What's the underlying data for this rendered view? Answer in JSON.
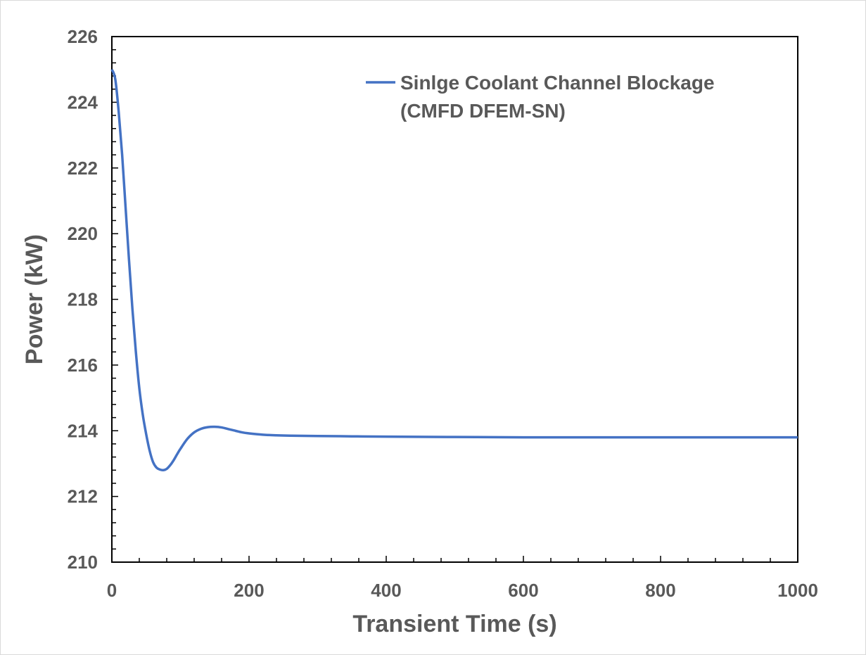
{
  "chart_data": {
    "type": "line",
    "title": "",
    "xlabel": "Transient Time (s)",
    "ylabel": "Power (kW)",
    "xlim": [
      0,
      1000
    ],
    "ylim": [
      210,
      226
    ],
    "x_ticks": [
      "0",
      "200",
      "400",
      "600",
      "800",
      "1000"
    ],
    "y_ticks": [
      "210",
      "212",
      "214",
      "216",
      "218",
      "220",
      "222",
      "224",
      "226"
    ],
    "grid": false,
    "legend_position": "top-right",
    "series": [
      {
        "name": "Sinlge Coolant Channel Blockage (CMFD DFEM-SN)",
        "legend_lines": [
          "Sinlge Coolant Channel Blockage",
          "(CMFD DFEM-SN)"
        ],
        "color": "#4472c4",
        "x": [
          0,
          5,
          10,
          15,
          20,
          25,
          30,
          35,
          40,
          45,
          50,
          55,
          60,
          65,
          70,
          75,
          80,
          85,
          90,
          95,
          100,
          110,
          120,
          130,
          140,
          150,
          160,
          170,
          180,
          190,
          200,
          220,
          240,
          260,
          300,
          350,
          400,
          500,
          600,
          700,
          800,
          900,
          1000
        ],
        "y": [
          225.0,
          224.7,
          223.7,
          222.4,
          220.8,
          219.2,
          217.7,
          216.4,
          215.3,
          214.5,
          213.9,
          213.4,
          213.05,
          212.88,
          212.82,
          212.8,
          212.84,
          212.95,
          213.1,
          213.28,
          213.45,
          213.75,
          213.95,
          214.06,
          214.11,
          214.12,
          214.1,
          214.05,
          214.0,
          213.95,
          213.92,
          213.88,
          213.86,
          213.85,
          213.84,
          213.83,
          213.82,
          213.81,
          213.8,
          213.8,
          213.8,
          213.8,
          213.8
        ]
      }
    ]
  }
}
